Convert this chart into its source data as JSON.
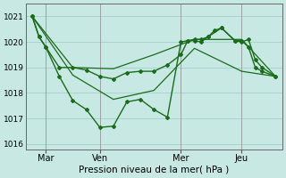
{
  "bg_color": "#c8e8e4",
  "grid_color": "#a8d4d0",
  "line_color": "#1a6b1a",
  "ylim": [
    1015.8,
    1021.5
  ],
  "xlim": [
    -0.5,
    18.5
  ],
  "yticks": [
    1016,
    1017,
    1018,
    1019,
    1020,
    1021
  ],
  "ytick_labels": [
    "1016",
    "1017",
    "1018",
    "1019",
    "1020",
    "1021"
  ],
  "xtick_positions": [
    1,
    5,
    11,
    15.5
  ],
  "xtick_labels": [
    "Mar",
    "Ven",
    "Mer",
    "Jeu"
  ],
  "vline_positions": [
    1,
    5,
    11,
    15.5
  ],
  "xlabel": "Pression niveau de la mer( hPa )",
  "line1_x": [
    0,
    0.5,
    1,
    2,
    3,
    4,
    5,
    6,
    7,
    8,
    9,
    10,
    11,
    11.5,
    12,
    12.5,
    13,
    13.5,
    14,
    15,
    15.5,
    16,
    16.5,
    17,
    18
  ],
  "line1_y": [
    1021.0,
    1020.2,
    1019.8,
    1019.0,
    1019.0,
    1018.9,
    1018.65,
    1018.55,
    1018.8,
    1018.85,
    1018.85,
    1019.1,
    1019.5,
    1020.05,
    1020.05,
    1020.0,
    1020.2,
    1020.45,
    1020.55,
    1020.05,
    1020.05,
    1019.8,
    1019.0,
    1018.85,
    1018.65
  ],
  "line2_x": [
    0,
    0.5,
    1,
    2,
    3,
    4,
    5,
    6,
    7,
    8,
    9,
    10,
    11,
    11.5,
    12,
    12.5,
    13,
    14,
    15,
    15.5,
    16,
    16.5,
    17,
    18
  ],
  "line2_y": [
    1021.0,
    1020.2,
    1019.8,
    1018.65,
    1017.7,
    1017.35,
    1016.65,
    1016.7,
    1017.65,
    1017.75,
    1017.35,
    1017.05,
    1020.0,
    1020.05,
    1020.1,
    1020.1,
    1020.2,
    1020.55,
    1020.05,
    1020.0,
    1020.1,
    1019.3,
    1019.0,
    1018.65
  ],
  "smooth_upper_x": [
    0,
    3,
    6,
    9,
    12,
    15.5,
    18
  ],
  "smooth_upper_y": [
    1021.0,
    1019.0,
    1018.95,
    1019.5,
    1020.1,
    1020.1,
    1018.65
  ],
  "smooth_lower_x": [
    0,
    3,
    6,
    9,
    12,
    15.5,
    18
  ],
  "smooth_lower_y": [
    1021.0,
    1018.7,
    1017.75,
    1018.1,
    1019.75,
    1018.85,
    1018.65
  ]
}
